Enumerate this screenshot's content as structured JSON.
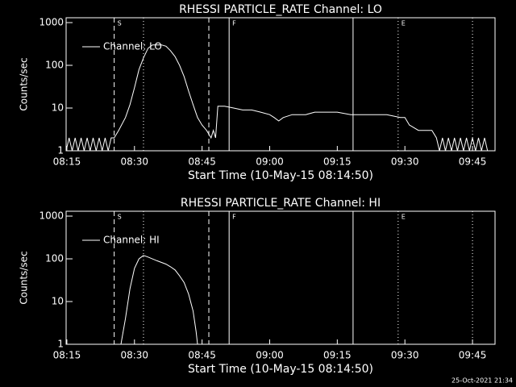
{
  "chart_data": [
    {
      "type": "line",
      "title": "RHESSI PARTICLE_RATE Channel: LO",
      "ylabel": "Counts/sec",
      "xlabel": "Start Time (10-May-15 08:14:50)",
      "log_y": true,
      "legend": "upper left",
      "color": "#ffffff",
      "xlim": [
        "08:14:50",
        "09:50"
      ],
      "xticks": [
        "08:15",
        "08:30",
        "08:45",
        "09:00",
        "09:15",
        "09:30",
        "09:45"
      ],
      "ylim": [
        1,
        1300
      ],
      "yticks": [
        1,
        10,
        100,
        1000
      ],
      "vlines": [
        {
          "x": "08:25:30",
          "style": "dashed"
        },
        {
          "x": "08:32",
          "style": "dotted"
        },
        {
          "x": "08:46:30",
          "style": "dashed"
        },
        {
          "x": "08:51",
          "style": "solid"
        },
        {
          "x": "09:18:30",
          "style": "solid"
        },
        {
          "x": "09:28:30",
          "style": "dotted"
        },
        {
          "x": "09:45",
          "style": "dotted"
        }
      ],
      "annotations": [
        {
          "text": "S",
          "x": "08:25:30"
        },
        {
          "text": "F",
          "x": "08:51"
        },
        {
          "text": "E",
          "x": "09:28:30"
        }
      ],
      "series": [
        {
          "name": "Channel: LO",
          "x": [
            "08:14:50",
            "08:15:30",
            "08:16:10",
            "08:16:50",
            "08:17:30",
            "08:18:10",
            "08:18:50",
            "08:19:30",
            "08:20:10",
            "08:20:50",
            "08:21:30",
            "08:22:10",
            "08:22:50",
            "08:23:30",
            "08:24:10",
            "08:24:50",
            "08:25:30",
            "08:26:30",
            "08:28",
            "08:29",
            "08:30",
            "08:31",
            "08:32",
            "08:33",
            "08:34",
            "08:36",
            "08:37",
            "08:38",
            "08:39",
            "08:40",
            "08:41",
            "08:42",
            "08:43",
            "08:44",
            "08:45",
            "08:46",
            "08:47",
            "08:47:30",
            "08:48",
            "08:48:30",
            "08:50",
            "08:52",
            "08:54",
            "08:56",
            "08:58",
            "09:00",
            "09:01",
            "09:02",
            "09:03",
            "09:05",
            "09:08",
            "09:10",
            "09:12",
            "09:15",
            "09:18",
            "09:20",
            "09:23",
            "09:26",
            "09:29",
            "09:30",
            "09:31",
            "09:33",
            "09:35",
            "09:36",
            "09:37",
            "09:37:40",
            "09:38:20",
            "09:39",
            "09:39:40",
            "09:40:20",
            "09:41",
            "09:41:40",
            "09:42:20",
            "09:43",
            "09:43:40",
            "09:44:20",
            "09:45",
            "09:45:40",
            "09:46:20",
            "09:47",
            "09:47:40",
            "09:48:20"
          ],
          "values": [
            1,
            2,
            1,
            2,
            1,
            2,
            1,
            2,
            1,
            2,
            1,
            2,
            1,
            2,
            1,
            2,
            2,
            3,
            6,
            12,
            30,
            80,
            150,
            250,
            300,
            300,
            280,
            220,
            160,
            100,
            55,
            25,
            12,
            6,
            4,
            3,
            2,
            3,
            2,
            11,
            11,
            10,
            9,
            9,
            8,
            7,
            6,
            5,
            6,
            7,
            7,
            8,
            8,
            8,
            7,
            7,
            7,
            7,
            6,
            6,
            4,
            3,
            3,
            3,
            2,
            1,
            2,
            1,
            2,
            1,
            2,
            1,
            2,
            1,
            2,
            1,
            2,
            1,
            2,
            1,
            2,
            1
          ]
        }
      ]
    },
    {
      "type": "line",
      "title": "RHESSI PARTICLE_RATE Channel: HI",
      "ylabel": "Counts/sec",
      "xlabel": "Start Time (10-May-15 08:14:50)",
      "log_y": true,
      "legend": "upper left",
      "color": "#ffffff",
      "xlim": [
        "08:14:50",
        "09:50"
      ],
      "xticks": [
        "08:15",
        "08:30",
        "08:45",
        "09:00",
        "09:15",
        "09:30",
        "09:45"
      ],
      "ylim": [
        1,
        1300
      ],
      "yticks": [
        1,
        10,
        100,
        1000
      ],
      "vlines": [
        {
          "x": "08:25:30",
          "style": "dashed"
        },
        {
          "x": "08:32",
          "style": "dotted"
        },
        {
          "x": "08:46:30",
          "style": "dashed"
        },
        {
          "x": "08:51",
          "style": "solid"
        },
        {
          "x": "09:18:30",
          "style": "solid"
        },
        {
          "x": "09:28:30",
          "style": "dotted"
        },
        {
          "x": "09:45",
          "style": "dotted"
        }
      ],
      "annotations": [
        {
          "text": "S",
          "x": "08:25:30"
        },
        {
          "text": "F",
          "x": "08:51"
        },
        {
          "text": "E",
          "x": "09:28:30"
        }
      ],
      "series": [
        {
          "name": "Channel: HI",
          "x": [
            "08:27",
            "08:28",
            "08:29",
            "08:30",
            "08:31",
            "08:32",
            "08:33",
            "08:35",
            "08:37",
            "08:38",
            "08:39",
            "08:40",
            "08:41",
            "08:42",
            "08:43",
            "08:43:40",
            "08:44"
          ],
          "values": [
            1,
            4,
            20,
            60,
            100,
            120,
            110,
            90,
            75,
            65,
            55,
            40,
            28,
            15,
            6,
            2,
            1
          ]
        }
      ]
    }
  ],
  "footer": "25-Oct-2021 21:34"
}
